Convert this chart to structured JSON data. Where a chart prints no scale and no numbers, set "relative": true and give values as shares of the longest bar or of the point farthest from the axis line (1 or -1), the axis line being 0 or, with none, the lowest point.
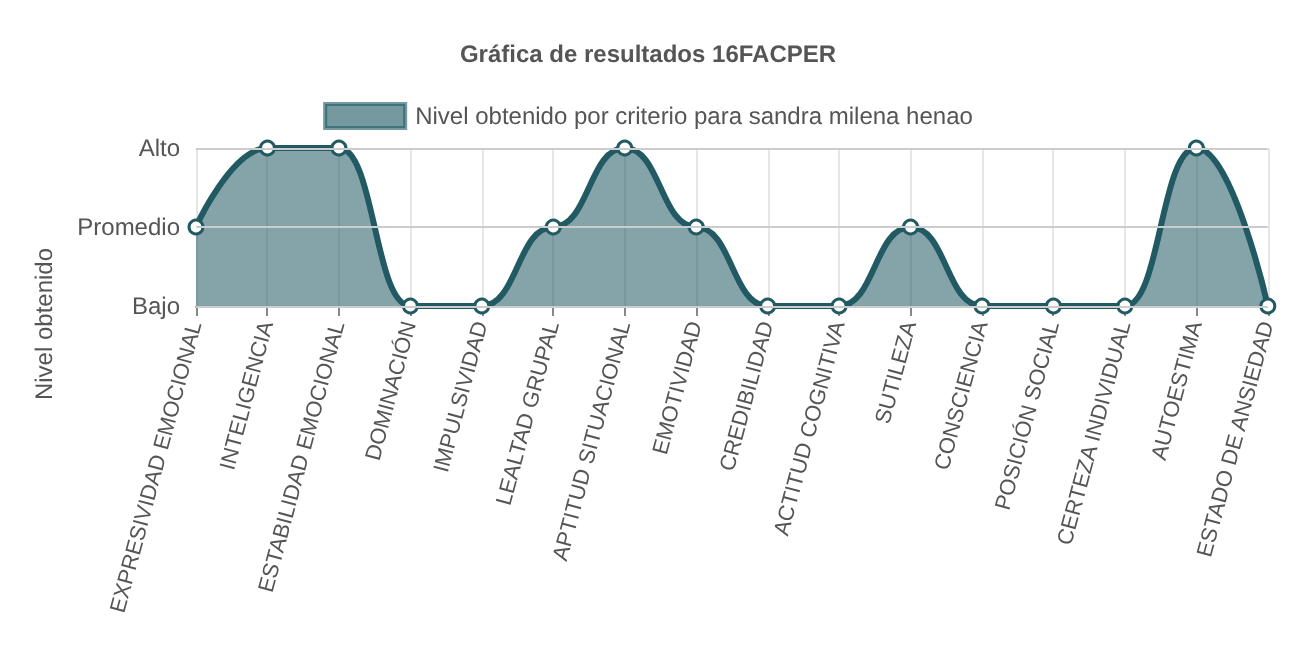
{
  "chart_data": {
    "type": "area",
    "title": "Gráfica de resultados 16FACPER",
    "ylabel": "Nivel obtenido",
    "categories": [
      "EXPRESIVIDAD EMOCIONAL",
      "INTELIGENCIA",
      "ESTABILIDAD EMOCIONAL",
      "DOMINACIÓN",
      "IMPULSIVIDAD",
      "LEALTAD GRUPAL",
      "APTITUD SITUACIONAL",
      "EMOTIVIDAD",
      "CREDIBILIDAD",
      "ACTITUD COGNITIVA",
      "SUTILEZA",
      "CONSCIENCIA",
      "POSICIÓN SOCIAL",
      "CERTEZA INDIVIDUAL",
      "AUTOESTIMA",
      "ESTADO DE ANSIEDAD"
    ],
    "series": [
      {
        "name": "Nivel obtenido por criterio para sandra milena henao",
        "color": "#215a63",
        "values": [
          0.5,
          1,
          1,
          0,
          0,
          0.5,
          1,
          0.5,
          0,
          0,
          0.5,
          0,
          0,
          0,
          1,
          0
        ]
      }
    ],
    "relative": true,
    "ref_lines": [
      {
        "axis": "y",
        "value": 0,
        "label": "Bajo",
        "color": "#cccccc"
      },
      {
        "axis": "y",
        "value": 0.5,
        "label": "Promedio",
        "color": "#cccccc"
      },
      {
        "axis": "y",
        "value": 1,
        "label": "Alto",
        "color": "#cccccc"
      }
    ],
    "grid": true,
    "legend": "top",
    "marker": "circle",
    "line_style": "solid"
  }
}
